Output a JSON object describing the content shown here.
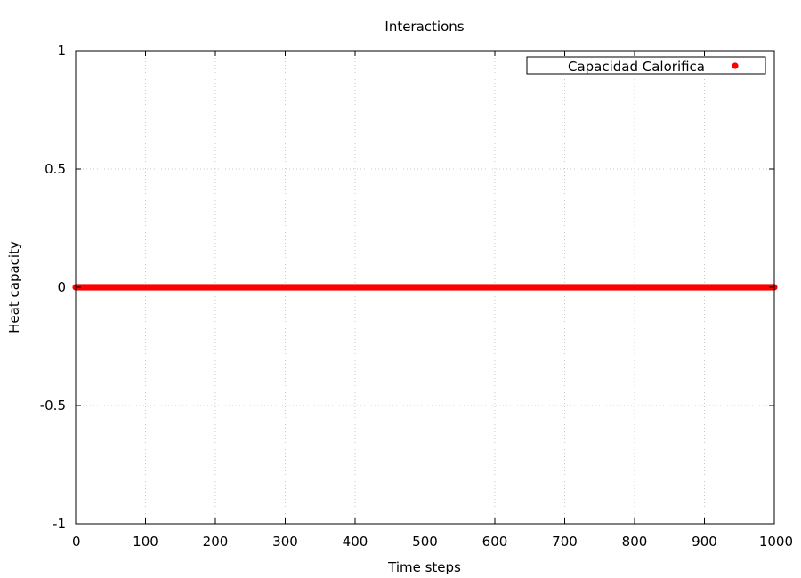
{
  "chart_data": {
    "type": "scatter",
    "title": "Interactions",
    "xlabel": "Time steps",
    "ylabel": "Heat capacity",
    "xlim": [
      0,
      1000
    ],
    "ylim": [
      -1,
      1
    ],
    "xticks": [
      0,
      100,
      200,
      300,
      400,
      500,
      600,
      700,
      800,
      900,
      1000
    ],
    "yticks": [
      -1,
      -0.5,
      0,
      0.5,
      1
    ],
    "grid": true,
    "legend": {
      "position": "top-right"
    },
    "series": [
      {
        "name": "Capacidad Calorifica",
        "color": "#ff0000",
        "marker": "circle",
        "x_range": [
          0,
          1000
        ],
        "x_step": 1,
        "y_constant": 0
      }
    ]
  }
}
